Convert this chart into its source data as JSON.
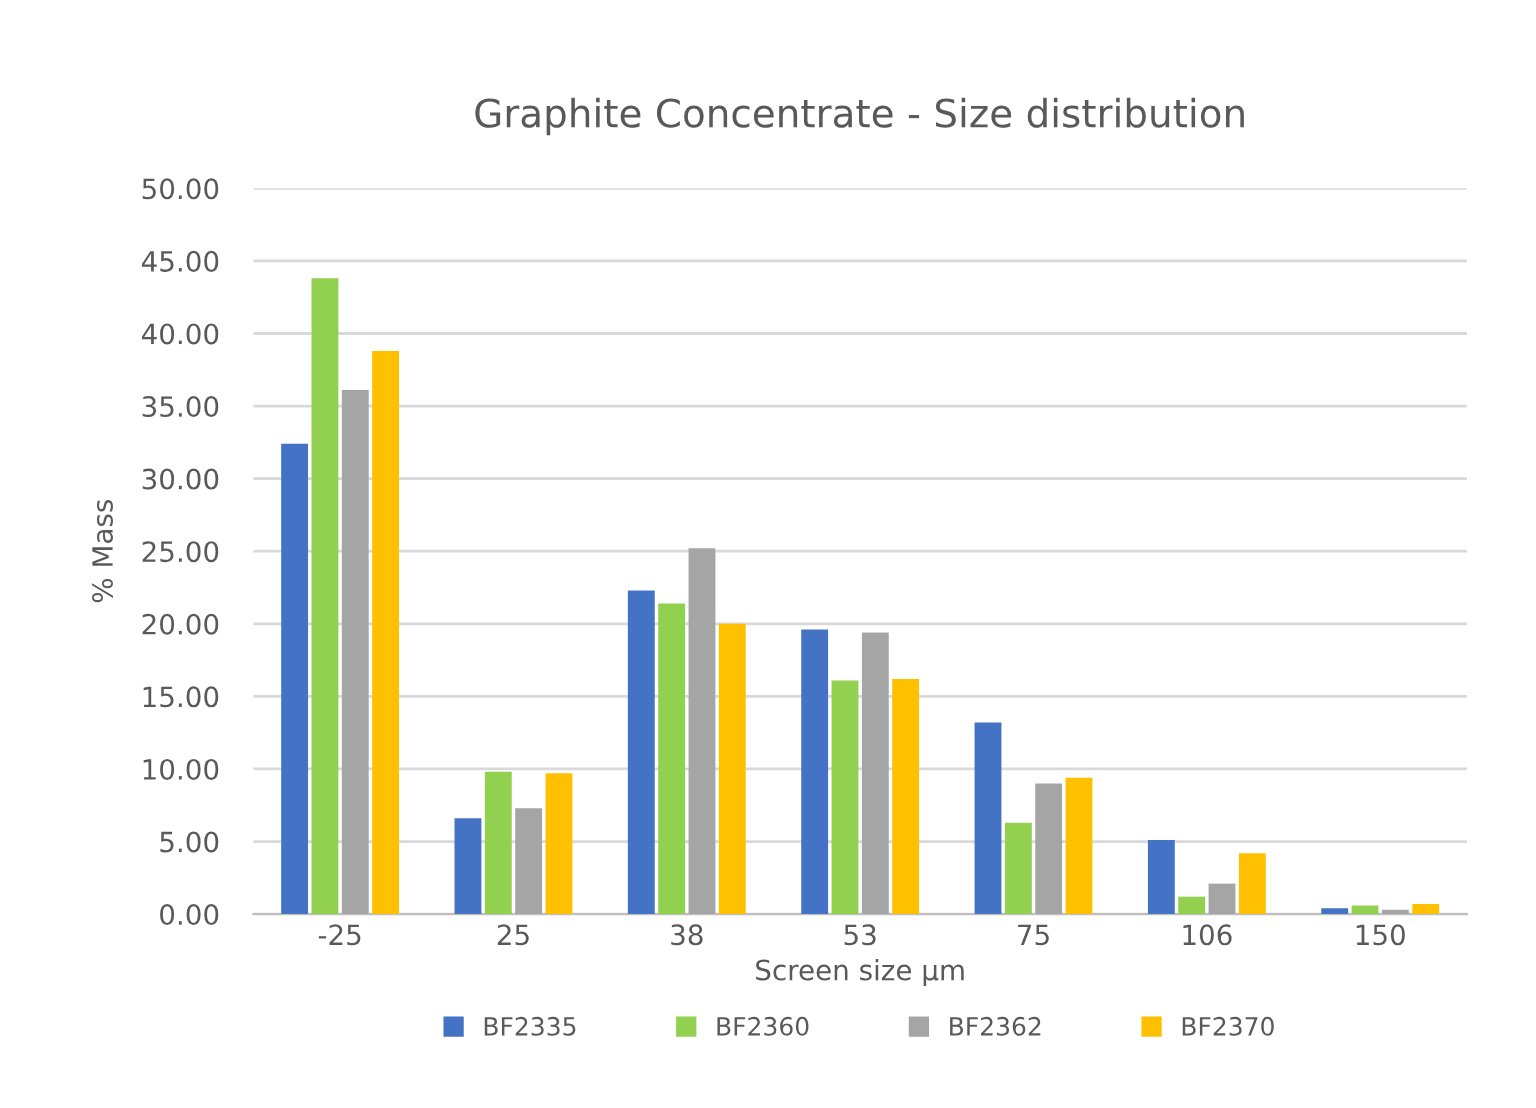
{
  "chart_data": {
    "type": "bar",
    "title": "Graphite Concentrate - Size distribution",
    "xlabel": "Screen size µm",
    "ylabel": "% Mass",
    "categories": [
      "-25",
      "25",
      "38",
      "53",
      "75",
      "106",
      "150"
    ],
    "series": [
      {
        "name": "BF2335",
        "color": "#4472c4",
        "values": [
          32.4,
          6.6,
          22.3,
          19.6,
          13.2,
          5.1,
          0.4
        ]
      },
      {
        "name": "BF2360",
        "color": "#92d050",
        "values": [
          43.8,
          9.8,
          21.4,
          16.1,
          6.3,
          1.2,
          0.6
        ]
      },
      {
        "name": "BF2362",
        "color": "#a5a5a5",
        "values": [
          36.1,
          7.3,
          25.2,
          19.4,
          9.0,
          2.1,
          0.3
        ]
      },
      {
        "name": "BF2370",
        "color": "#ffc000",
        "values": [
          38.8,
          9.7,
          20.0,
          16.2,
          9.4,
          4.2,
          0.7
        ]
      }
    ],
    "ylim": [
      0,
      50
    ],
    "yticks": [
      {
        "value": 0,
        "label": "0.00"
      },
      {
        "value": 5,
        "label": "5.00"
      },
      {
        "value": 10,
        "label": "10.00"
      },
      {
        "value": 15,
        "label": "15.00"
      },
      {
        "value": 20,
        "label": "20.00"
      },
      {
        "value": 25,
        "label": "25.00"
      },
      {
        "value": 30,
        "label": "30.00"
      },
      {
        "value": 35,
        "label": "35.00"
      },
      {
        "value": 40,
        "label": "40.00"
      },
      {
        "value": 45,
        "label": "45.00"
      },
      {
        "value": 50,
        "label": "50.00"
      }
    ],
    "grid": "y",
    "legend": "bottom"
  }
}
